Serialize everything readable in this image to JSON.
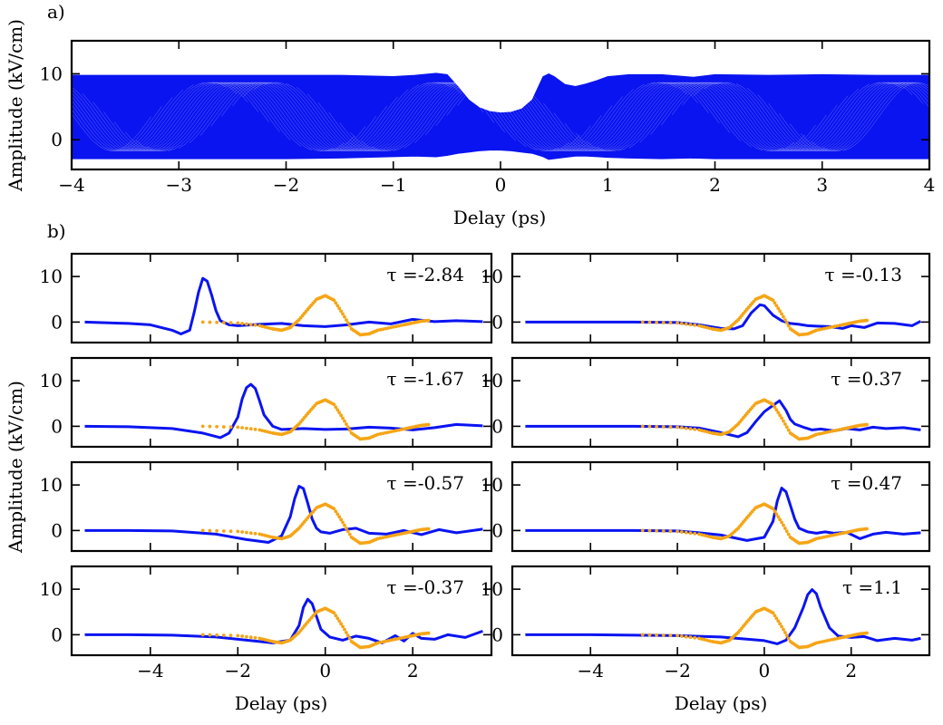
{
  "panel_labels": {
    "a": "a)",
    "b": "b)"
  },
  "colors": {
    "series_main": "#0a14f0",
    "series_reference": "#f5a516",
    "axes": "#000000"
  },
  "chart_data": [
    {
      "id": "a",
      "type": "line",
      "xlabel": "Delay (ps)",
      "ylabel": "Amplitude (kV/cm)",
      "xlim": [
        -4,
        4
      ],
      "ylim": [
        -4.5,
        15
      ],
      "xticks": [
        -4,
        -3,
        -2,
        -1,
        0,
        1,
        2,
        3,
        4
      ],
      "yticks": [
        0,
        10
      ],
      "grid": false,
      "envelope": {
        "x": [
          -4,
          -3.5,
          -3,
          -2.5,
          -2,
          -1.5,
          -1,
          -0.8,
          -0.6,
          -0.5,
          -0.4,
          -0.3,
          -0.2,
          -0.1,
          0,
          0.1,
          0.2,
          0.3,
          0.4,
          0.45,
          0.5,
          0.6,
          0.7,
          0.8,
          0.9,
          1.0,
          1.2,
          1.5,
          1.8,
          2.0,
          2.5,
          3,
          3.5,
          4
        ],
        "upper": [
          9.7,
          9.7,
          9.7,
          9.7,
          9.7,
          9.7,
          9.5,
          9.7,
          10.0,
          9.8,
          8.0,
          6.0,
          4.8,
          4.2,
          4.0,
          4.1,
          4.6,
          6.0,
          9.5,
          9.9,
          9.5,
          8.3,
          8.0,
          8.4,
          8.9,
          9.5,
          9.8,
          9.8,
          9.4,
          9.8,
          9.7,
          9.8,
          9.7,
          9.7
        ],
        "lower": [
          -2.8,
          -2.8,
          -2.8,
          -2.8,
          -2.8,
          -2.7,
          -2.5,
          -2.4,
          -2.5,
          -2.3,
          -2.0,
          -1.8,
          -1.6,
          -1.5,
          -1.5,
          -1.6,
          -1.8,
          -2.0,
          -2.5,
          -2.9,
          -2.8,
          -2.6,
          -2.4,
          -2.4,
          -2.5,
          -2.6,
          -2.7,
          -2.8,
          -2.7,
          -2.8,
          -2.8,
          -2.8,
          -2.8,
          -2.8
        ]
      }
    },
    {
      "id": "b1",
      "type": "line",
      "xlim": [
        -5.8,
        3.8
      ],
      "ylim": [
        -4.5,
        15
      ],
      "xticks": [
        -4,
        -2,
        0,
        2,
        4
      ],
      "yticks": [
        0,
        10
      ],
      "annotation": "τ =-2.84",
      "series": [
        {
          "role": "main",
          "x": [
            -5.5,
            -4.5,
            -4.0,
            -3.5,
            -3.3,
            -3.1,
            -3.0,
            -2.9,
            -2.8,
            -2.7,
            -2.6,
            -2.5,
            -2.4,
            -2.2,
            -2.0,
            -1.5,
            -1.0,
            -0.5,
            0,
            0.5,
            1.0,
            1.5,
            2.0,
            2.5,
            3.0,
            3.6
          ],
          "y": [
            0,
            -0.3,
            -0.6,
            -1.8,
            -2.6,
            -1.8,
            2.0,
            6.5,
            9.6,
            9.0,
            6.0,
            2.5,
            0.3,
            -0.6,
            -0.8,
            -0.5,
            -0.3,
            -0.8,
            -1.0,
            -0.6,
            0.0,
            -0.4,
            0.6,
            0.1,
            0.3,
            0.1
          ]
        },
        {
          "role": "reference",
          "x": [
            -2.8,
            -2.0,
            -1.5,
            -1.2,
            -1.0,
            -0.8,
            -0.6,
            -0.4,
            -0.2,
            0,
            0.2,
            0.4,
            0.6,
            0.8,
            1.0,
            1.2,
            1.5,
            1.8,
            2.0,
            2.2,
            2.4
          ],
          "y": [
            0,
            -0.2,
            -0.8,
            -1.5,
            -1.8,
            -1.2,
            0.5,
            2.8,
            5.0,
            5.8,
            4.8,
            1.8,
            -1.5,
            -2.8,
            -2.6,
            -1.8,
            -1.2,
            -0.6,
            -0.2,
            0.2,
            0.4
          ]
        }
      ]
    },
    {
      "id": "b2",
      "type": "line",
      "xlim": [
        -5.8,
        3.8
      ],
      "ylim": [
        -4.5,
        15
      ],
      "xticks": [
        -4,
        -2,
        0,
        2,
        4
      ],
      "yticks": [
        0,
        10
      ],
      "annotation": "τ =-0.13",
      "series": [
        {
          "role": "main",
          "x": [
            -5.5,
            -4.0,
            -3.0,
            -2.0,
            -1.5,
            -1.0,
            -0.7,
            -0.5,
            -0.3,
            -0.1,
            0.0,
            0.2,
            0.4,
            0.6,
            0.8,
            1.0,
            1.2,
            1.5,
            1.8,
            2.0,
            2.3,
            2.6,
            3.0,
            3.4,
            3.6
          ],
          "y": [
            0,
            0,
            0,
            -0.1,
            -0.6,
            -1.4,
            -1.5,
            -0.8,
            2.0,
            3.8,
            3.6,
            1.5,
            0.3,
            -0.3,
            -0.5,
            -0.8,
            -0.9,
            -1.0,
            -1.4,
            -0.8,
            -1.2,
            -0.2,
            -0.3,
            -0.8,
            0.2
          ]
        },
        {
          "role": "reference",
          "x": [
            -2.8,
            -2.0,
            -1.5,
            -1.2,
            -1.0,
            -0.8,
            -0.6,
            -0.4,
            -0.2,
            0,
            0.2,
            0.4,
            0.6,
            0.8,
            1.0,
            1.2,
            1.5,
            1.8,
            2.0,
            2.2,
            2.4
          ],
          "y": [
            0,
            -0.2,
            -0.8,
            -1.5,
            -1.8,
            -1.2,
            0.5,
            2.8,
            5.0,
            5.8,
            4.8,
            1.8,
            -1.5,
            -2.8,
            -2.6,
            -1.8,
            -1.2,
            -0.6,
            -0.2,
            0.2,
            0.4
          ]
        }
      ]
    },
    {
      "id": "b3",
      "type": "line",
      "xlim": [
        -5.8,
        3.8
      ],
      "ylim": [
        -4.5,
        15
      ],
      "xticks": [
        -4,
        -2,
        0,
        2,
        4
      ],
      "yticks": [
        0,
        10
      ],
      "annotation": "τ =-1.67",
      "series": [
        {
          "role": "main",
          "x": [
            -5.5,
            -4.5,
            -3.5,
            -2.8,
            -2.4,
            -2.2,
            -2.0,
            -1.9,
            -1.8,
            -1.7,
            -1.6,
            -1.5,
            -1.4,
            -1.2,
            -1.0,
            -0.5,
            0,
            0.5,
            1.0,
            1.5,
            2.0,
            2.5,
            3.0,
            3.6
          ],
          "y": [
            0,
            -0.1,
            -0.5,
            -1.5,
            -2.5,
            -1.5,
            2.0,
            6.0,
            8.5,
            9.2,
            8.3,
            5.5,
            2.5,
            0.0,
            -0.7,
            -0.5,
            -0.7,
            -0.6,
            -0.2,
            -0.4,
            -0.8,
            -0.3,
            0.4,
            0.1
          ]
        },
        {
          "role": "reference",
          "x": [
            -2.8,
            -2.0,
            -1.5,
            -1.2,
            -1.0,
            -0.8,
            -0.6,
            -0.4,
            -0.2,
            0,
            0.2,
            0.4,
            0.6,
            0.8,
            1.0,
            1.2,
            1.5,
            1.8,
            2.0,
            2.2,
            2.4
          ],
          "y": [
            0,
            -0.2,
            -0.8,
            -1.5,
            -1.8,
            -1.2,
            0.5,
            2.8,
            5.0,
            5.8,
            4.8,
            1.8,
            -1.5,
            -2.8,
            -2.6,
            -1.8,
            -1.2,
            -0.6,
            -0.2,
            0.2,
            0.4
          ]
        }
      ]
    },
    {
      "id": "b4",
      "type": "line",
      "xlim": [
        -5.8,
        3.8
      ],
      "ylim": [
        -4.5,
        15
      ],
      "xticks": [
        -4,
        -2,
        0,
        2,
        4
      ],
      "yticks": [
        0,
        10
      ],
      "annotation": "τ =0.37",
      "series": [
        {
          "role": "main",
          "x": [
            -5.5,
            -4.0,
            -3.0,
            -2.0,
            -1.5,
            -1.0,
            -0.6,
            -0.4,
            -0.2,
            0.0,
            0.2,
            0.35,
            0.5,
            0.6,
            0.7,
            0.9,
            1.1,
            1.3,
            1.6,
            1.9,
            2.2,
            2.5,
            2.8,
            3.2,
            3.6
          ],
          "y": [
            0,
            0,
            0,
            -0.1,
            -0.4,
            -1.4,
            -2.3,
            -1.4,
            1.0,
            3.2,
            4.6,
            5.6,
            3.5,
            1.5,
            0.5,
            -0.2,
            -0.8,
            -0.6,
            -1.0,
            -0.5,
            -0.8,
            -0.2,
            -0.5,
            -0.3,
            -0.8
          ]
        },
        {
          "role": "reference",
          "x": [
            -2.8,
            -2.0,
            -1.5,
            -1.2,
            -1.0,
            -0.8,
            -0.6,
            -0.4,
            -0.2,
            0,
            0.2,
            0.4,
            0.6,
            0.8,
            1.0,
            1.2,
            1.5,
            1.8,
            2.0,
            2.2,
            2.4
          ],
          "y": [
            0,
            -0.2,
            -0.8,
            -1.5,
            -1.8,
            -1.2,
            0.5,
            2.8,
            5.0,
            5.8,
            4.8,
            1.8,
            -1.5,
            -2.8,
            -2.6,
            -1.8,
            -1.2,
            -0.6,
            -0.2,
            0.2,
            0.4
          ]
        }
      ]
    },
    {
      "id": "b5",
      "type": "line",
      "xlim": [
        -5.8,
        3.8
      ],
      "ylim": [
        -4.5,
        15
      ],
      "xticks": [
        -4,
        -2,
        0,
        2,
        4
      ],
      "yticks": [
        0,
        10
      ],
      "annotation": "τ =-0.57",
      "series": [
        {
          "role": "main",
          "x": [
            -5.5,
            -4.5,
            -3.5,
            -2.5,
            -1.8,
            -1.3,
            -1.0,
            -0.8,
            -0.7,
            -0.6,
            -0.5,
            -0.4,
            -0.3,
            -0.2,
            -0.1,
            0.1,
            0.4,
            0.7,
            1.0,
            1.4,
            1.8,
            2.2,
            2.6,
            3.0,
            3.6
          ],
          "y": [
            0,
            0,
            -0.1,
            -0.8,
            -2.0,
            -2.6,
            -1.2,
            3.0,
            7.0,
            9.7,
            9.2,
            6.0,
            2.5,
            0.5,
            -0.3,
            -0.6,
            0.2,
            0.5,
            -0.6,
            -0.8,
            0.0,
            -0.9,
            0.2,
            -0.5,
            0.3
          ]
        },
        {
          "role": "reference",
          "x": [
            -2.8,
            -2.0,
            -1.5,
            -1.2,
            -1.0,
            -0.8,
            -0.6,
            -0.4,
            -0.2,
            0,
            0.2,
            0.4,
            0.6,
            0.8,
            1.0,
            1.2,
            1.5,
            1.8,
            2.0,
            2.2,
            2.4
          ],
          "y": [
            0,
            -0.2,
            -0.8,
            -1.5,
            -1.8,
            -1.2,
            0.5,
            2.8,
            5.0,
            5.8,
            4.8,
            1.8,
            -1.5,
            -2.8,
            -2.6,
            -1.8,
            -1.2,
            -0.6,
            -0.2,
            0.2,
            0.4
          ]
        }
      ]
    },
    {
      "id": "b6",
      "type": "line",
      "xlim": [
        -5.8,
        3.8
      ],
      "ylim": [
        -4.5,
        15
      ],
      "xticks": [
        -4,
        -2,
        0,
        2,
        4
      ],
      "yticks": [
        0,
        10
      ],
      "annotation": "τ =0.47",
      "series": [
        {
          "role": "main",
          "x": [
            -5.5,
            -4.0,
            -3.0,
            -2.0,
            -1.5,
            -1.0,
            -0.4,
            0.0,
            0.2,
            0.3,
            0.4,
            0.5,
            0.6,
            0.7,
            0.8,
            1.0,
            1.2,
            1.4,
            1.6,
            1.9,
            2.2,
            2.5,
            2.8,
            3.2,
            3.6
          ],
          "y": [
            0,
            0,
            0,
            -0.1,
            -0.5,
            -1.0,
            -2.2,
            -1.5,
            2.0,
            6.5,
            9.3,
            8.5,
            5.5,
            2.5,
            0.5,
            -0.3,
            -0.6,
            -0.3,
            -0.6,
            -0.4,
            -1.8,
            -0.8,
            -0.4,
            -0.8,
            -0.5
          ]
        },
        {
          "role": "reference",
          "x": [
            -2.8,
            -2.0,
            -1.5,
            -1.2,
            -1.0,
            -0.8,
            -0.6,
            -0.4,
            -0.2,
            0,
            0.2,
            0.4,
            0.6,
            0.8,
            1.0,
            1.2,
            1.5,
            1.8,
            2.0,
            2.2,
            2.4
          ],
          "y": [
            0,
            -0.2,
            -0.8,
            -1.5,
            -1.8,
            -1.2,
            0.5,
            2.8,
            5.0,
            5.8,
            4.8,
            1.8,
            -1.5,
            -2.8,
            -2.6,
            -1.8,
            -1.2,
            -0.6,
            -0.2,
            0.2,
            0.4
          ]
        }
      ]
    },
    {
      "id": "b7",
      "type": "line",
      "xlim": [
        -5.8,
        3.8
      ],
      "ylim": [
        -4.5,
        15
      ],
      "xticks": [
        -4,
        -2,
        0,
        2,
        4
      ],
      "yticks": [
        0,
        10
      ],
      "annotation": "τ =-0.37",
      "series": [
        {
          "role": "main",
          "x": [
            -5.5,
            -4.5,
            -3.5,
            -2.5,
            -1.8,
            -1.2,
            -0.8,
            -0.6,
            -0.5,
            -0.4,
            -0.3,
            -0.2,
            -0.1,
            0.1,
            0.4,
            0.7,
            1.0,
            1.3,
            1.6,
            1.8,
            2.0,
            2.2,
            2.5,
            2.8,
            3.2,
            3.6
          ],
          "y": [
            0,
            0,
            -0.1,
            -0.5,
            -1.2,
            -1.8,
            -1.2,
            2.0,
            6.0,
            7.8,
            6.8,
            4.0,
            1.2,
            -0.5,
            -1.2,
            -0.3,
            -0.8,
            -1.8,
            -0.2,
            -1.4,
            0.3,
            -0.8,
            -1.0,
            0.0,
            -0.6,
            0.8
          ]
        },
        {
          "role": "reference",
          "x": [
            -2.8,
            -2.0,
            -1.5,
            -1.2,
            -1.0,
            -0.8,
            -0.6,
            -0.4,
            -0.2,
            0,
            0.2,
            0.4,
            0.6,
            0.8,
            1.0,
            1.2,
            1.5,
            1.8,
            2.0,
            2.2,
            2.4
          ],
          "y": [
            0,
            -0.2,
            -0.8,
            -1.5,
            -1.8,
            -1.2,
            0.5,
            2.8,
            5.0,
            5.8,
            4.8,
            1.8,
            -1.5,
            -2.8,
            -2.6,
            -1.8,
            -1.2,
            -0.6,
            -0.2,
            0.2,
            0.4
          ]
        }
      ]
    },
    {
      "id": "b8",
      "type": "line",
      "xlim": [
        -5.8,
        3.8
      ],
      "ylim": [
        -4.5,
        15
      ],
      "xticks": [
        -4,
        -2,
        0,
        2,
        4
      ],
      "yticks": [
        0,
        10
      ],
      "annotation": "τ =1.1",
      "series": [
        {
          "role": "main",
          "x": [
            -5.5,
            -4.0,
            -3.0,
            -2.0,
            -1.0,
            -0.5,
            0.0,
            0.3,
            0.5,
            0.7,
            0.9,
            1.0,
            1.1,
            1.2,
            1.3,
            1.5,
            1.7,
            2.0,
            2.3,
            2.6,
            3.0,
            3.4,
            3.6
          ],
          "y": [
            0,
            0,
            -0.1,
            -0.2,
            -0.5,
            -0.9,
            -1.3,
            -2.0,
            -1.2,
            1.5,
            6.0,
            8.8,
            9.9,
            9.0,
            6.0,
            1.5,
            -0.3,
            -0.6,
            -0.4,
            -1.3,
            -0.8,
            -1.2,
            -0.8
          ]
        },
        {
          "role": "reference",
          "x": [
            -2.8,
            -2.0,
            -1.5,
            -1.2,
            -1.0,
            -0.8,
            -0.6,
            -0.4,
            -0.2,
            0,
            0.2,
            0.4,
            0.6,
            0.8,
            1.0,
            1.2,
            1.5,
            1.8,
            2.0,
            2.2,
            2.4
          ],
          "y": [
            0,
            -0.2,
            -0.8,
            -1.5,
            -1.8,
            -1.2,
            0.5,
            2.8,
            5.0,
            5.8,
            4.8,
            1.8,
            -1.5,
            -2.8,
            -2.6,
            -1.8,
            -1.2,
            -0.6,
            -0.2,
            0.2,
            0.4
          ]
        }
      ]
    }
  ],
  "panel_b": {
    "xlabel_left": "Delay (ps)",
    "xlabel_right": "Delay (ps)",
    "ylabel": "Amplitude (kV/cm)"
  }
}
